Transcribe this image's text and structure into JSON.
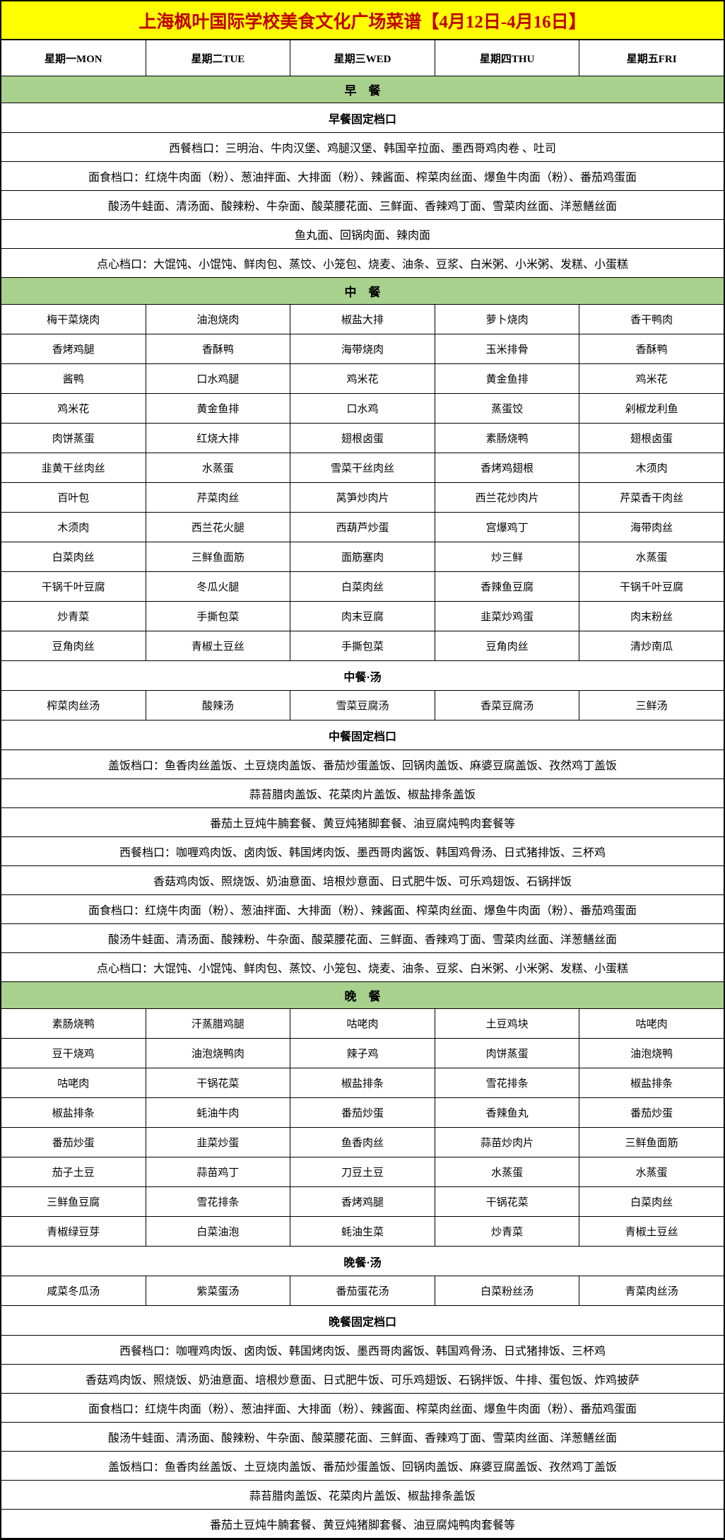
{
  "title": "上海枫叶国际学校美食文化广场菜谱【4月12日-4月16日】",
  "colors": {
    "title_bg": "#ffff00",
    "title_text": "#c00000",
    "section_bar_bg": "#a9d18e",
    "border": "#000000"
  },
  "days": [
    "星期一MON",
    "星期二TUE",
    "星期三WED",
    "星期四THU",
    "星期五FRI"
  ],
  "breakfast": {
    "header": "早　餐",
    "fixed_header": "早餐固定档口",
    "rows": [
      "西餐档口：三明治、牛肉汉堡、鸡腿汉堡、韩国辛拉面、墨西哥鸡肉卷 、吐司",
      "面食档口：红烧牛肉面（粉）、葱油拌面、大排面（粉）、辣酱面、榨菜肉丝面、爆鱼牛肉面（粉）、番茄鸡蛋面",
      "酸汤牛蛙面、清汤面、酸辣粉、牛杂面、酸菜腰花面、三鲜面、香辣鸡丁面、雪菜肉丝面、洋葱鳝丝面",
      "鱼丸面、回锅肉面、辣肉面",
      "点心档口：大馄饨、小馄饨、鲜肉包、蒸饺、小笼包、烧麦、油条、豆浆、白米粥、小米粥、发糕、小蛋糕"
    ]
  },
  "lunch": {
    "header": "中　餐",
    "grid": [
      [
        "梅干菜烧肉",
        "油泡烧肉",
        "椒盐大排",
        "萝卜烧肉",
        "香干鸭肉"
      ],
      [
        "香烤鸡腿",
        "香酥鸭",
        "海带烧肉",
        "玉米排骨",
        "香酥鸭"
      ],
      [
        "酱鸭",
        "口水鸡腿",
        "鸡米花",
        "黄金鱼排",
        "鸡米花"
      ],
      [
        "鸡米花",
        "黄金鱼排",
        "口水鸡",
        "蒸蛋饺",
        "剁椒龙利鱼"
      ],
      [
        "肉饼蒸蛋",
        "红烧大排",
        "翅根卤蛋",
        "素肠烧鸭",
        "翅根卤蛋"
      ],
      [
        "韭黄干丝肉丝",
        "水蒸蛋",
        "雪菜干丝肉丝",
        "香烤鸡翅根",
        "木须肉"
      ],
      [
        "百叶包",
        "芹菜肉丝",
        "莴笋炒肉片",
        "西兰花炒肉片",
        "芹菜香干肉丝"
      ],
      [
        "木须肉",
        "西兰花火腿",
        "西葫芦炒蛋",
        "宫爆鸡丁",
        "海带肉丝"
      ],
      [
        "白菜肉丝",
        "三鲜鱼面筋",
        "面筋塞肉",
        "炒三鲜",
        "水蒸蛋"
      ],
      [
        "干锅千叶豆腐",
        "冬瓜火腿",
        "白菜肉丝",
        "香辣鱼豆腐",
        "干锅千叶豆腐"
      ],
      [
        "炒青菜",
        "手撕包菜",
        "肉末豆腐",
        "韭菜炒鸡蛋",
        "肉末粉丝"
      ],
      [
        "豆角肉丝",
        "青椒土豆丝",
        "手撕包菜",
        "豆角肉丝",
        "清炒南瓜"
      ]
    ],
    "soup_header": "中餐·汤",
    "soups": [
      "榨菜肉丝汤",
      "酸辣汤",
      "雪菜豆腐汤",
      "香菜豆腐汤",
      "三鲜汤"
    ],
    "fixed_header": "中餐固定档口",
    "fixed_rows": [
      "盖饭档口：鱼香肉丝盖饭、土豆烧肉盖饭、番茄炒蛋盖饭、回锅肉盖饭、麻婆豆腐盖饭、孜然鸡丁盖饭",
      "蒜苔腊肉盖饭、花菜肉片盖饭、椒盐排条盖饭",
      "番茄土豆炖牛腩套餐、黄豆炖猪脚套餐、油豆腐炖鸭肉套餐等",
      "西餐档口：咖喱鸡肉饭、卤肉饭、韩国烤肉饭、墨西哥肉酱饭、韩国鸡骨汤、日式猪排饭、三杯鸡",
      "香菇鸡肉饭、照烧饭、奶油意面、培根炒意面、日式肥牛饭、可乐鸡翅饭、石锅拌饭",
      "面食档口：红烧牛肉面（粉）、葱油拌面、大排面（粉）、辣酱面、榨菜肉丝面、爆鱼牛肉面（粉）、番茄鸡蛋面",
      "酸汤牛蛙面、清汤面、酸辣粉、牛杂面、酸菜腰花面、三鲜面、香辣鸡丁面、雪菜肉丝面、洋葱鳝丝面",
      "点心档口：大馄饨、小馄饨、鲜肉包、蒸饺、小笼包、烧麦、油条、豆浆、白米粥、小米粥、发糕、小蛋糕"
    ]
  },
  "dinner": {
    "header": "晚　餐",
    "grid": [
      [
        "素肠烧鸭",
        "汗蒸腊鸡腿",
        "咕咾肉",
        "土豆鸡块",
        "咕咾肉"
      ],
      [
        "豆干烧鸡",
        "油泡烧鸭肉",
        "辣子鸡",
        "肉饼蒸蛋",
        "油泡烧鸭"
      ],
      [
        "咕咾肉",
        "干锅花菜",
        "椒盐排条",
        "雪花排条",
        "椒盐排条"
      ],
      [
        "椒盐排条",
        "蚝油牛肉",
        "番茄炒蛋",
        "香辣鱼丸",
        "番茄炒蛋"
      ],
      [
        "番茄炒蛋",
        "韭菜炒蛋",
        "鱼香肉丝",
        "蒜苗炒肉片",
        "三鲜鱼面筋"
      ],
      [
        "茄子土豆",
        "蒜苗鸡丁",
        "刀豆土豆",
        "水蒸蛋",
        "水蒸蛋"
      ],
      [
        "三鲜鱼豆腐",
        "雪花排条",
        "香烤鸡腿",
        "干锅花菜",
        "白菜肉丝"
      ],
      [
        "青椒绿豆芽",
        "白菜油泡",
        "蚝油生菜",
        "炒青菜",
        "青椒土豆丝"
      ]
    ],
    "soup_header": "晚餐·汤",
    "soups": [
      "咸菜冬瓜汤",
      "紫菜蛋汤",
      "番茄蛋花汤",
      "白菜粉丝汤",
      "青菜肉丝汤"
    ],
    "fixed_header": "晚餐固定档口",
    "fixed_rows": [
      "西餐档口：咖喱鸡肉饭、卤肉饭、韩国烤肉饭、墨西哥肉酱饭、韩国鸡骨汤、日式猪排饭、三杯鸡",
      "香菇鸡肉饭、照烧饭、奶油意面、培根炒意面、日式肥牛饭、可乐鸡翅饭、石锅拌饭、牛排、蛋包饭、炸鸡披萨",
      "面食档口：红烧牛肉面（粉）、葱油拌面、大排面（粉）、辣酱面、榨菜肉丝面、爆鱼牛肉面（粉）、番茄鸡蛋面",
      "酸汤牛蛙面、清汤面、酸辣粉、牛杂面、酸菜腰花面、三鲜面、香辣鸡丁面、雪菜肉丝面、洋葱鳝丝面",
      "盖饭档口：鱼香肉丝盖饭、土豆烧肉盖饭、番茄炒蛋盖饭、回锅肉盖饭、麻婆豆腐盖饭、孜然鸡丁盖饭",
      "蒜苔腊肉盖饭、花菜肉片盖饭、椒盐排条盖饭",
      "番茄土豆炖牛腩套餐、黄豆炖猪脚套餐、油豆腐炖鸭肉套餐等"
    ]
  }
}
